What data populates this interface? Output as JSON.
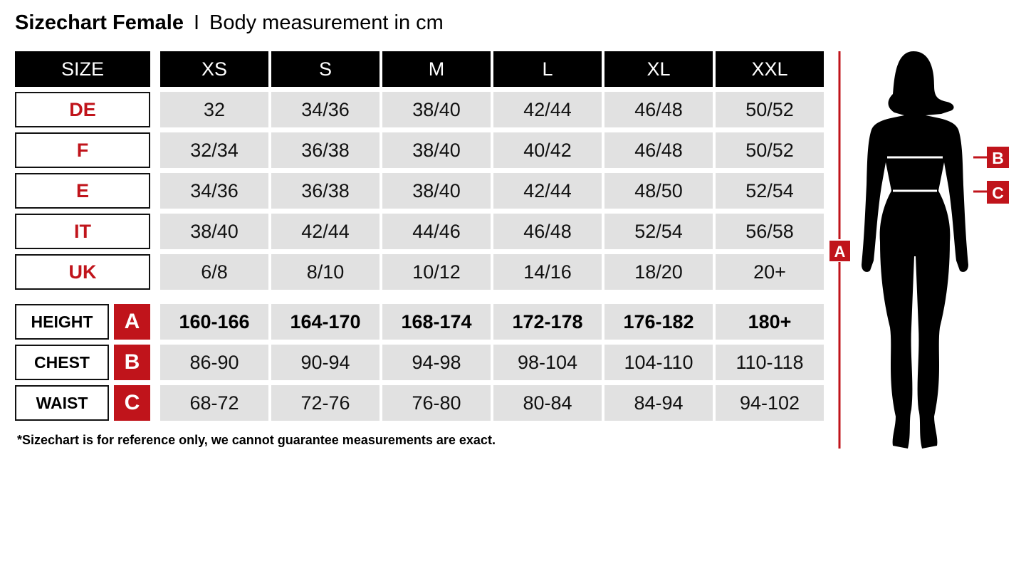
{
  "title": {
    "main": "Sizechart Female",
    "separator": "I",
    "subtitle": "Body measurement in cm"
  },
  "header": {
    "label": "SIZE",
    "sizes": [
      "XS",
      "S",
      "M",
      "L",
      "XL",
      "XXL"
    ]
  },
  "size_rows": [
    {
      "label": "DE",
      "values": [
        "32",
        "34/36",
        "38/40",
        "42/44",
        "46/48",
        "50/52"
      ]
    },
    {
      "label": "F",
      "values": [
        "32/34",
        "36/38",
        "38/40",
        "40/42",
        "46/48",
        "50/52"
      ]
    },
    {
      "label": "E",
      "values": [
        "34/36",
        "36/38",
        "38/40",
        "42/44",
        "48/50",
        "52/54"
      ]
    },
    {
      "label": "IT",
      "values": [
        "38/40",
        "42/44",
        "44/46",
        "46/48",
        "52/54",
        "56/58"
      ]
    },
    {
      "label": "UK",
      "values": [
        "6/8",
        "8/10",
        "10/12",
        "14/16",
        "18/20",
        "20+"
      ]
    }
  ],
  "measure_rows": [
    {
      "label": "HEIGHT",
      "badge": "A",
      "values": [
        "160-166",
        "164-170",
        "168-174",
        "172-178",
        "176-182",
        "180+"
      ]
    },
    {
      "label": "CHEST",
      "badge": "B",
      "values": [
        "86-90",
        "90-94",
        "94-98",
        "98-104",
        "104-110",
        "110-118"
      ]
    },
    {
      "label": "WAIST",
      "badge": "C",
      "values": [
        "68-72",
        "72-76",
        "76-80",
        "80-84",
        "84-94",
        "94-102"
      ]
    }
  ],
  "note": "*Sizechart is for reference only, we cannot guarantee measurements are exact.",
  "figure": {
    "height_marker": "A",
    "chest_marker": "B",
    "waist_marker": "C",
    "icon": "female-body-silhouette"
  },
  "colors": {
    "accent": "#c0141b",
    "header": "#000000",
    "cell": "#e1e1e1"
  }
}
